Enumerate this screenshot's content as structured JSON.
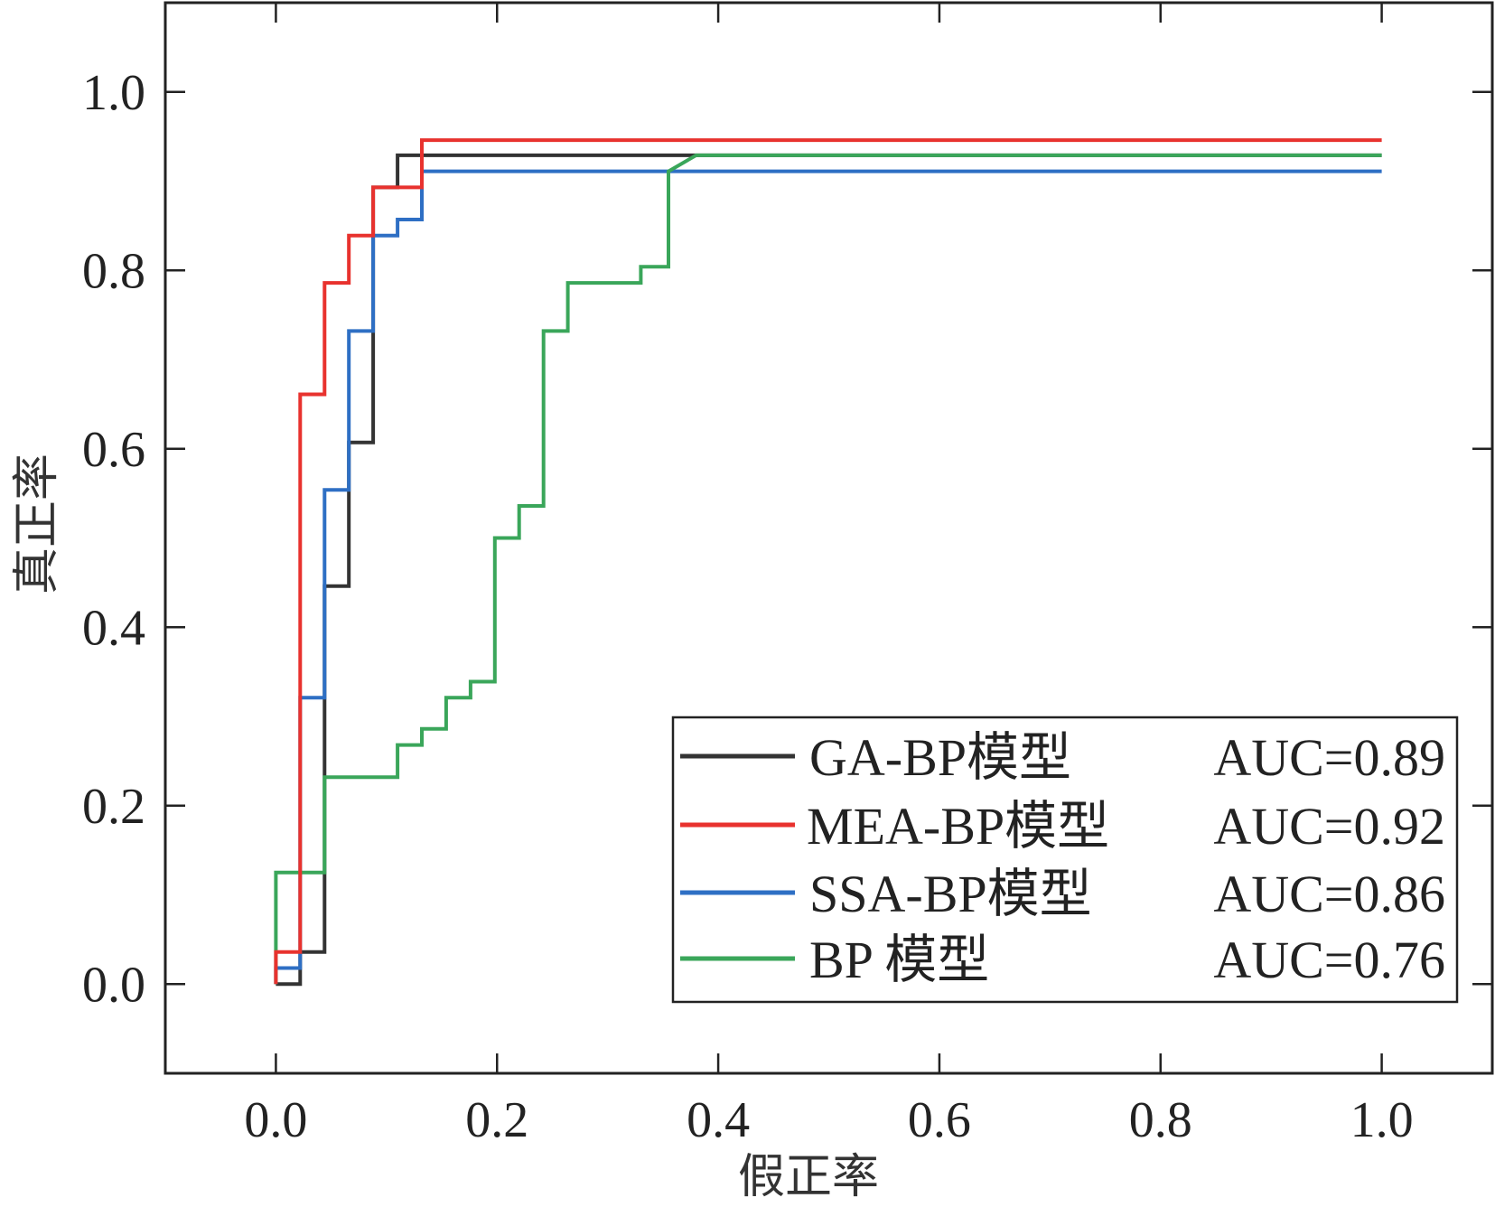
{
  "chart_data": {
    "type": "line",
    "title": "",
    "xlabel": "假正率",
    "ylabel": "真正率",
    "xlim": [
      -0.1,
      1.1
    ],
    "ylim": [
      -0.1,
      1.1
    ],
    "x_ticks": [
      "0.0",
      "0.2",
      "0.4",
      "0.6",
      "0.8",
      "1.0"
    ],
    "y_ticks": [
      "0.0",
      "0.2",
      "0.4",
      "0.6",
      "0.8",
      "1.0"
    ],
    "grid": false,
    "legend_position": "bottom-right",
    "series": [
      {
        "name": "GA-BP模型",
        "auc": "AUC=0.89",
        "color": "#333333",
        "x": [
          0.0,
          0.022,
          0.022,
          0.044,
          0.044,
          0.066,
          0.066,
          0.088,
          0.088,
          0.11,
          0.11,
          0.38,
          1.0
        ],
        "y": [
          0.0,
          0.0,
          0.036,
          0.036,
          0.446,
          0.446,
          0.607,
          0.607,
          0.893,
          0.893,
          0.929,
          0.929,
          0.929
        ]
      },
      {
        "name": "MEA-BP模型",
        "auc": "AUC=0.92",
        "color": "#e8322e",
        "x": [
          0.0,
          0.0,
          0.022,
          0.022,
          0.044,
          0.044,
          0.066,
          0.066,
          0.088,
          0.088,
          0.132,
          0.132,
          1.0
        ],
        "y": [
          0.0,
          0.036,
          0.036,
          0.661,
          0.661,
          0.786,
          0.786,
          0.839,
          0.839,
          0.893,
          0.893,
          0.946,
          0.946
        ]
      },
      {
        "name": "SSA-BP模型",
        "auc": "AUC=0.86",
        "color": "#2e6fc4",
        "x": [
          0.0,
          0.0,
          0.022,
          0.022,
          0.044,
          0.044,
          0.066,
          0.066,
          0.088,
          0.088,
          0.11,
          0.11,
          0.132,
          0.132,
          1.0
        ],
        "y": [
          0.0,
          0.018,
          0.018,
          0.321,
          0.321,
          0.554,
          0.554,
          0.732,
          0.732,
          0.839,
          0.839,
          0.857,
          0.857,
          0.911,
          0.911
        ]
      },
      {
        "name": "BP 模型",
        "auc": "AUC=0.76",
        "color": "#3aa65a",
        "x": [
          0.0,
          0.0,
          0.044,
          0.044,
          0.11,
          0.11,
          0.132,
          0.132,
          0.154,
          0.154,
          0.176,
          0.176,
          0.198,
          0.198,
          0.22,
          0.22,
          0.242,
          0.242,
          0.264,
          0.264,
          0.33,
          0.33,
          0.355,
          0.355,
          0.38,
          1.0
        ],
        "y": [
          0.0,
          0.125,
          0.125,
          0.232,
          0.232,
          0.268,
          0.268,
          0.286,
          0.286,
          0.321,
          0.321,
          0.339,
          0.339,
          0.5,
          0.5,
          0.536,
          0.536,
          0.732,
          0.732,
          0.786,
          0.786,
          0.804,
          0.804,
          0.911,
          0.929,
          0.929
        ]
      }
    ]
  }
}
